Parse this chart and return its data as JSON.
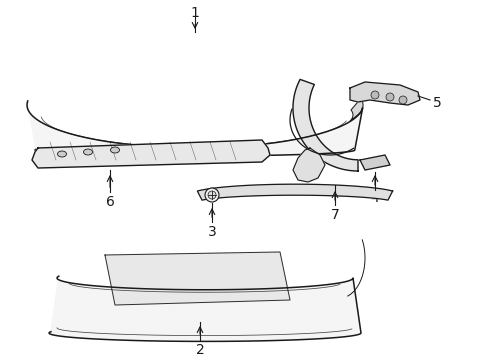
{
  "background_color": "#ffffff",
  "line_color": "#1a1a1a",
  "fill_color": "#f2f2f2",
  "fill_dark": "#e0e0e0",
  "figsize": [
    4.9,
    3.6
  ],
  "dpi": 100
}
